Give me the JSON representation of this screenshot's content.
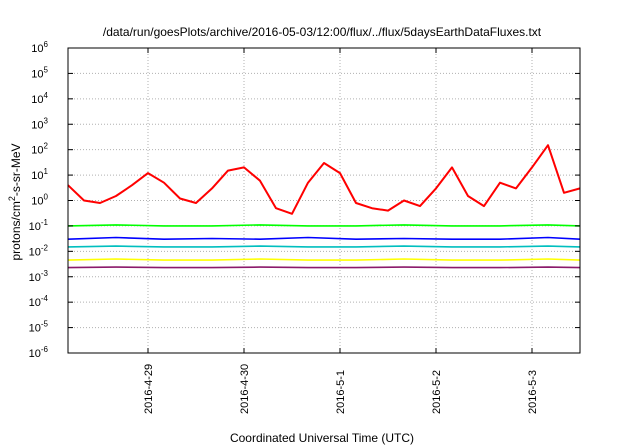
{
  "chart_data": {
    "type": "line",
    "title": "/data/run/goesPlots/archive/2016-05-03/12:00/flux/../flux/5daysEarthDataFluxes.txt",
    "xlabel": "Coordinated Universal Time (UTC)",
    "ylabel": "protons/cm2-s-sr-MeV",
    "ylabel_parts": [
      "protons/cm",
      "2",
      "-s-sr-MeV"
    ],
    "yscale": "log",
    "ylim": [
      1e-06,
      1000000.0
    ],
    "xlim": [
      "2016-04-28T04:00",
      "2016-05-03T12:00"
    ],
    "grid": true,
    "x_ticks": [
      "2016-4-29",
      "2016-4-30",
      "2016-5-1",
      "2016-5-2",
      "2016-5-3"
    ],
    "y_ticks": [
      {
        "base": "10",
        "exp": "6"
      },
      {
        "base": "10",
        "exp": "5"
      },
      {
        "base": "10",
        "exp": "4"
      },
      {
        "base": "10",
        "exp": "3"
      },
      {
        "base": "10",
        "exp": "2"
      },
      {
        "base": "10",
        "exp": "1"
      },
      {
        "base": "10",
        "exp": "0"
      },
      {
        "base": "10",
        "exp": "-1"
      },
      {
        "base": "10",
        "exp": "-2"
      },
      {
        "base": "10",
        "exp": "-3"
      },
      {
        "base": "10",
        "exp": "-4"
      },
      {
        "base": "10",
        "exp": "-5"
      },
      {
        "base": "10",
        "exp": "-6"
      }
    ],
    "series": [
      {
        "color": "#ff0000",
        "x": [
          "2016-04-28T04:00",
          "2016-04-28T08:00",
          "2016-04-28T12:00",
          "2016-04-28T16:00",
          "2016-04-28T20:00",
          "2016-04-29T00:00",
          "2016-04-29T04:00",
          "2016-04-29T08:00",
          "2016-04-29T12:00",
          "2016-04-29T16:00",
          "2016-04-29T20:00",
          "2016-04-30T00:00",
          "2016-04-30T04:00",
          "2016-04-30T08:00",
          "2016-04-30T12:00",
          "2016-04-30T16:00",
          "2016-04-30T20:00",
          "2016-05-01T00:00",
          "2016-05-01T04:00",
          "2016-05-01T08:00",
          "2016-05-01T12:00",
          "2016-05-01T16:00",
          "2016-05-01T20:00",
          "2016-05-02T00:00",
          "2016-05-02T04:00",
          "2016-05-02T08:00",
          "2016-05-02T12:00",
          "2016-05-02T16:00",
          "2016-05-02T20:00",
          "2016-05-03T00:00",
          "2016-05-03T04:00",
          "2016-05-03T08:00",
          "2016-05-03T12:00"
        ],
        "values": [
          4,
          1.0,
          0.8,
          1.5,
          4,
          12,
          5,
          1.2,
          0.8,
          3,
          15,
          20,
          6,
          0.5,
          0.3,
          5,
          30,
          12,
          0.8,
          0.5,
          0.4,
          1,
          0.6,
          3,
          20,
          1.5,
          0.6,
          5,
          3,
          20,
          150,
          2,
          3
        ]
      },
      {
        "color": "#00ff00",
        "x": [
          "2016-04-28T04:00",
          "2016-04-28T16:00",
          "2016-04-29T04:00",
          "2016-04-29T16:00",
          "2016-04-30T04:00",
          "2016-04-30T16:00",
          "2016-05-01T04:00",
          "2016-05-01T16:00",
          "2016-05-02T04:00",
          "2016-05-02T16:00",
          "2016-05-03T04:00",
          "2016-05-03T12:00"
        ],
        "values": [
          0.1,
          0.11,
          0.1,
          0.1,
          0.11,
          0.1,
          0.1,
          0.11,
          0.1,
          0.1,
          0.11,
          0.1
        ]
      },
      {
        "color": "#0000ff",
        "x": [
          "2016-04-28T04:00",
          "2016-04-28T16:00",
          "2016-04-29T04:00",
          "2016-04-29T16:00",
          "2016-04-30T04:00",
          "2016-04-30T16:00",
          "2016-05-01T04:00",
          "2016-05-01T16:00",
          "2016-05-02T04:00",
          "2016-05-02T16:00",
          "2016-05-03T04:00",
          "2016-05-03T12:00"
        ],
        "values": [
          0.03,
          0.035,
          0.03,
          0.032,
          0.03,
          0.035,
          0.03,
          0.032,
          0.03,
          0.03,
          0.035,
          0.03
        ]
      },
      {
        "color": "#00bfbf",
        "x": [
          "2016-04-28T04:00",
          "2016-04-28T16:00",
          "2016-04-29T04:00",
          "2016-04-29T16:00",
          "2016-04-30T04:00",
          "2016-04-30T16:00",
          "2016-05-01T04:00",
          "2016-05-01T16:00",
          "2016-05-02T04:00",
          "2016-05-02T16:00",
          "2016-05-03T04:00",
          "2016-05-03T12:00"
        ],
        "values": [
          0.015,
          0.016,
          0.015,
          0.015,
          0.016,
          0.015,
          0.015,
          0.016,
          0.015,
          0.015,
          0.016,
          0.015
        ]
      },
      {
        "color": "#ffff00",
        "x": [
          "2016-04-28T04:00",
          "2016-04-28T16:00",
          "2016-04-29T04:00",
          "2016-04-29T16:00",
          "2016-04-30T04:00",
          "2016-04-30T16:00",
          "2016-05-01T04:00",
          "2016-05-01T16:00",
          "2016-05-02T04:00",
          "2016-05-02T16:00",
          "2016-05-03T04:00",
          "2016-05-03T12:00"
        ],
        "values": [
          0.0045,
          0.005,
          0.0045,
          0.0045,
          0.005,
          0.0045,
          0.0045,
          0.005,
          0.0045,
          0.0045,
          0.005,
          0.0045
        ]
      },
      {
        "color": "#8b1a6b",
        "x": [
          "2016-04-28T04:00",
          "2016-04-28T16:00",
          "2016-04-29T04:00",
          "2016-04-29T16:00",
          "2016-04-30T04:00",
          "2016-04-30T16:00",
          "2016-05-01T04:00",
          "2016-05-01T16:00",
          "2016-05-02T04:00",
          "2016-05-02T16:00",
          "2016-05-03T04:00",
          "2016-05-03T12:00"
        ],
        "values": [
          0.0023,
          0.0024,
          0.0023,
          0.0023,
          0.0024,
          0.0023,
          0.0023,
          0.0024,
          0.0023,
          0.0023,
          0.0024,
          0.0023
        ]
      }
    ]
  }
}
